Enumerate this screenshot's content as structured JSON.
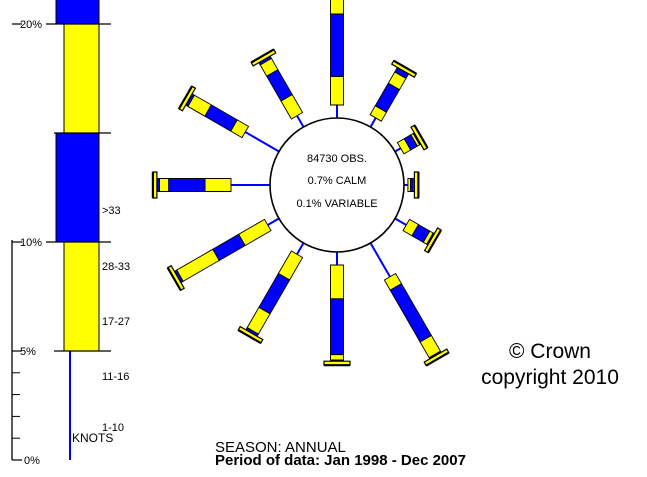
{
  "chart_data": {
    "type": "wind-rose",
    "center_text": [
      "84730 OBS.",
      "0.7% CALM",
      "0.1% VARIABLE"
    ],
    "speed_unit": "KNOTS",
    "speed_classes": [
      "1-10",
      "11-16",
      "17-27",
      "28-33",
      ">33"
    ],
    "class_colors": [
      "#0000ff",
      "#ffff00",
      "#0000ff",
      "#ffff00",
      "#0000ff"
    ],
    "scale_ticks": [
      "0%",
      "5%",
      "10%",
      "20%"
    ],
    "key_breaks_percent": [
      5,
      10,
      15,
      20
    ],
    "key_top_percent": 22.5,
    "directions_deg": [
      0,
      30,
      60,
      90,
      120,
      150,
      180,
      210,
      240,
      270,
      300,
      330
    ],
    "frequencies_cumulative_percent": [
      [
        1.0,
        3.2,
        8.0,
        10.5,
        11.0
      ],
      [
        0.8,
        1.6,
        3.6,
        4.6,
        5.0
      ],
      [
        0.5,
        1.1,
        1.7,
        1.9,
        2.0
      ],
      [
        0.3,
        0.5,
        0.7,
        0.8,
        0.8
      ],
      [
        1.0,
        1.8,
        2.8,
        3.1,
        3.2
      ],
      [
        3.0,
        3.9,
        8.5,
        9.9,
        10.0
      ],
      [
        1.0,
        3.6,
        7.9,
        8.3,
        8.4
      ],
      [
        1.0,
        3.0,
        6.0,
        7.8,
        8.0
      ],
      [
        1.0,
        3.3,
        5.6,
        8.8,
        9.0
      ],
      [
        3.0,
        5.0,
        7.8,
        8.5,
        8.7
      ],
      [
        3.0,
        4.0,
        6.3,
        7.8,
        8.0
      ],
      [
        1.0,
        2.6,
        4.8,
        5.8,
        6.0
      ]
    ]
  },
  "season_label": "SEASON: ANNUAL",
  "period_label": "Period of data: Jan 1998 - Dec 2007",
  "copyright_line1": "© Crown",
  "copyright_line2": "copyright 2010"
}
